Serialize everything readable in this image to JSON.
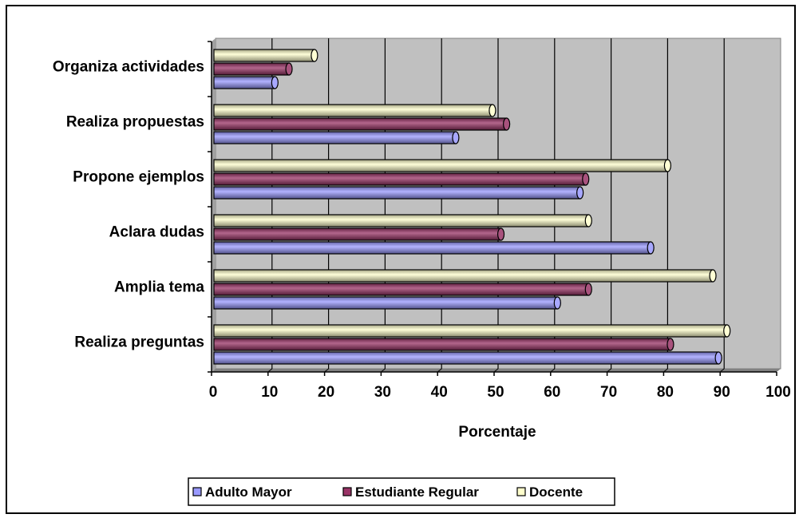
{
  "chart_data": {
    "type": "bar",
    "orientation": "horizontal",
    "bar_style": "3d-cylinder",
    "categories": [
      "Realiza preguntas",
      "Amplia tema",
      "Aclara dudas",
      "Propone ejemplos",
      "Realiza propuestas",
      "Organiza actividades"
    ],
    "series": [
      {
        "name": "Adulto Mayor",
        "color": "#9999ff",
        "values": [
          89,
          60.5,
          77,
          64.5,
          42.5,
          10.5
        ]
      },
      {
        "name": "Estudiante Regular",
        "color": "#993366",
        "values": [
          80.5,
          66,
          50.5,
          65.5,
          51.5,
          13
        ]
      },
      {
        "name": "Docente",
        "color": "#ffffcc",
        "values": [
          90.5,
          88,
          66,
          80,
          49,
          17.5
        ]
      }
    ],
    "xlabel": "Porcentaje",
    "ylabel": "",
    "title": "",
    "xlim": [
      0,
      100
    ],
    "xticks": [
      "0",
      "10",
      "20",
      "30",
      "40",
      "50",
      "60",
      "70",
      "80",
      "90",
      "100"
    ],
    "grid": "vertical",
    "plot_background": "#c0c0c0",
    "legend_position": "bottom"
  }
}
